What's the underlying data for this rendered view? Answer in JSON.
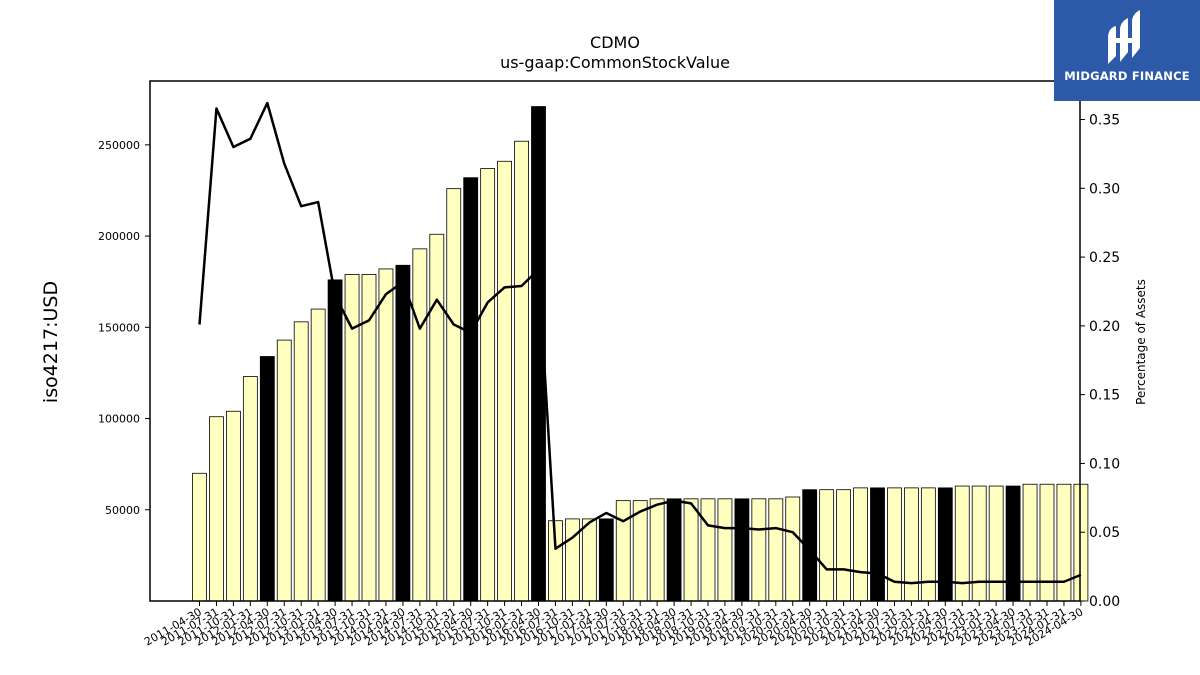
{
  "chart_data": {
    "type": "bar",
    "title": "CDMO",
    "subtitle": "us-gaap:CommonStockValue",
    "ylabel": "iso4217:USD",
    "y2label": "Percentage of Assets",
    "ylim": [
      0,
      285000
    ],
    "y2lim": [
      0,
      0.378
    ],
    "yticks": [
      50000,
      100000,
      150000,
      200000,
      250000
    ],
    "y2ticks": [
      "0.00",
      "0.05",
      "0.10",
      "0.15",
      "0.20",
      "0.25",
      "0.30",
      "0.35"
    ],
    "categories": [
      "2011-04-30",
      "2011-07-31",
      "2011-10-31",
      "2012-01-31",
      "2012-04-30",
      "2012-07-31",
      "2012-10-31",
      "2013-01-31",
      "2013-04-30",
      "2013-07-31",
      "2013-10-31",
      "2014-01-31",
      "2014-04-30",
      "2014-07-31",
      "2014-10-31",
      "2015-01-31",
      "2015-04-30",
      "2015-07-31",
      "2015-10-31",
      "2016-01-31",
      "2016-04-30",
      "2016-07-31",
      "2016-10-31",
      "2017-01-31",
      "2017-04-30",
      "2017-07-31",
      "2017-10-31",
      "2018-01-31",
      "2018-04-30",
      "2018-07-31",
      "2018-10-31",
      "2019-01-31",
      "2019-04-30",
      "2019-07-31",
      "2019-10-31",
      "2020-01-31",
      "2020-04-30",
      "2020-07-31",
      "2020-10-31",
      "2021-01-31",
      "2021-04-30",
      "2021-07-31",
      "2021-10-31",
      "2022-01-31",
      "2022-04-30",
      "2022-07-31",
      "2022-10-31",
      "2023-01-31",
      "2023-04-30",
      "2023-07-31",
      "2023-10-31",
      "2024-01-31",
      "2024-04-30"
    ],
    "tick_labels": [
      "2011-04-30",
      "2011-07-31",
      "2011-10-31",
      "2012-01-31",
      "2012-04-30",
      "2012-07-31",
      "2012-10-31",
      "2013-01-31",
      "2013-04-30",
      "2013-07-31",
      "2013-10-31",
      "2014-01-31",
      "2014-04-30",
      "2014-07-31",
      "2014-10-31",
      "2015-01-31",
      "2015-04-30",
      "2015-07-31",
      "2015-10-31",
      "2016-01-31",
      "2016-04-30",
      "2016-07-31",
      "2016-10-31",
      "2017-01-31",
      "2017-04-30",
      "2017-07-31",
      "2017-10-31",
      "2018-01-31",
      "2018-04-30",
      "2018-07-31",
      "2018-10-31",
      "2019-01-31",
      "2019-04-30",
      "2019-07-31",
      "2019-10-31",
      "2020-01-31",
      "2020-04-30",
      "2020-07-31",
      "2020-10-31",
      "2021-01-31",
      "2021-04-30",
      "2021-07-31",
      "2021-10-31",
      "2022-01-31",
      "2022-04-30",
      "2022-07-31",
      "2022-10-31",
      "2023-01-31",
      "2023-04-30",
      "2023-07-31",
      "2023-10-31",
      "2024-01-31",
      "2024-04-30"
    ],
    "highlight_indices": [
      4,
      8,
      12,
      16,
      20,
      24,
      28,
      32,
      36,
      40,
      44,
      48
    ],
    "series": [
      {
        "values": [
          70000,
          101000,
          104000,
          123000,
          134000,
          143000,
          153000,
          160000,
          176000,
          179000,
          179000,
          182000,
          184000,
          193000,
          201000,
          226000,
          232000,
          237000,
          241000,
          252000,
          271000,
          44000,
          45000,
          45000,
          45000,
          55000,
          55000,
          56000,
          56000,
          56000,
          56000,
          56000,
          56000,
          56000,
          56000,
          57000,
          61000,
          61000,
          61000,
          62000,
          62000,
          62000,
          62000,
          62000,
          62000,
          63000,
          63000,
          63000,
          63000,
          64000,
          64000,
          64000,
          64000
        ]
      },
      {
        "values": [
          0.201,
          0.358,
          0.33,
          0.336,
          0.362,
          0.318,
          0.287,
          0.29,
          0.222,
          0.198,
          0.204,
          0.223,
          0.232,
          0.198,
          0.219,
          0.201,
          0.195,
          0.217,
          0.228,
          0.229,
          0.241,
          0.038,
          0.046,
          0.057,
          0.064,
          0.058,
          0.065,
          0.07,
          0.073,
          0.071,
          0.055,
          0.053,
          0.053,
          0.052,
          0.053,
          0.05,
          0.037,
          0.023,
          0.023,
          0.021,
          0.02,
          0.014,
          0.013,
          0.014,
          0.014,
          0.013,
          0.014,
          0.014,
          0.014,
          0.014,
          0.014,
          0.014,
          0.019
        ]
      }
    ],
    "colors": {
      "bar": "#ffffc0",
      "highlight": "#000000",
      "line": "#000000"
    }
  },
  "logo": {
    "text": "MIDGARD FINANCE",
    "background": "#2d5aa8"
  }
}
